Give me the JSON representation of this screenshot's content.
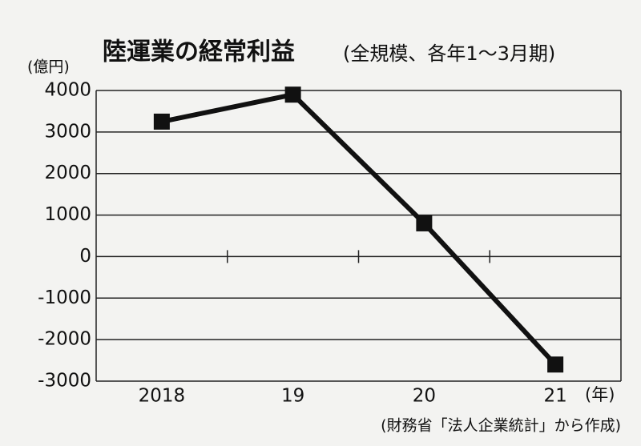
{
  "chart_data": {
    "type": "line",
    "title": "陸運業の経常利益",
    "subtitle": "(全規模、各年1～3月期)",
    "y_label": "(億円)",
    "x_label": "(年)",
    "source": "(財務省「法人企業統計」から作成)",
    "categories": [
      "2018",
      "19",
      "20",
      "21"
    ],
    "series": [
      {
        "name": "経常利益",
        "color": "#111111",
        "values": [
          3250,
          3900,
          800,
          -2600
        ]
      }
    ],
    "ylim": [
      -3000,
      4000
    ],
    "yticks": [
      -3000,
      -2000,
      -1000,
      0,
      1000,
      2000,
      3000,
      4000
    ],
    "grid": true
  }
}
